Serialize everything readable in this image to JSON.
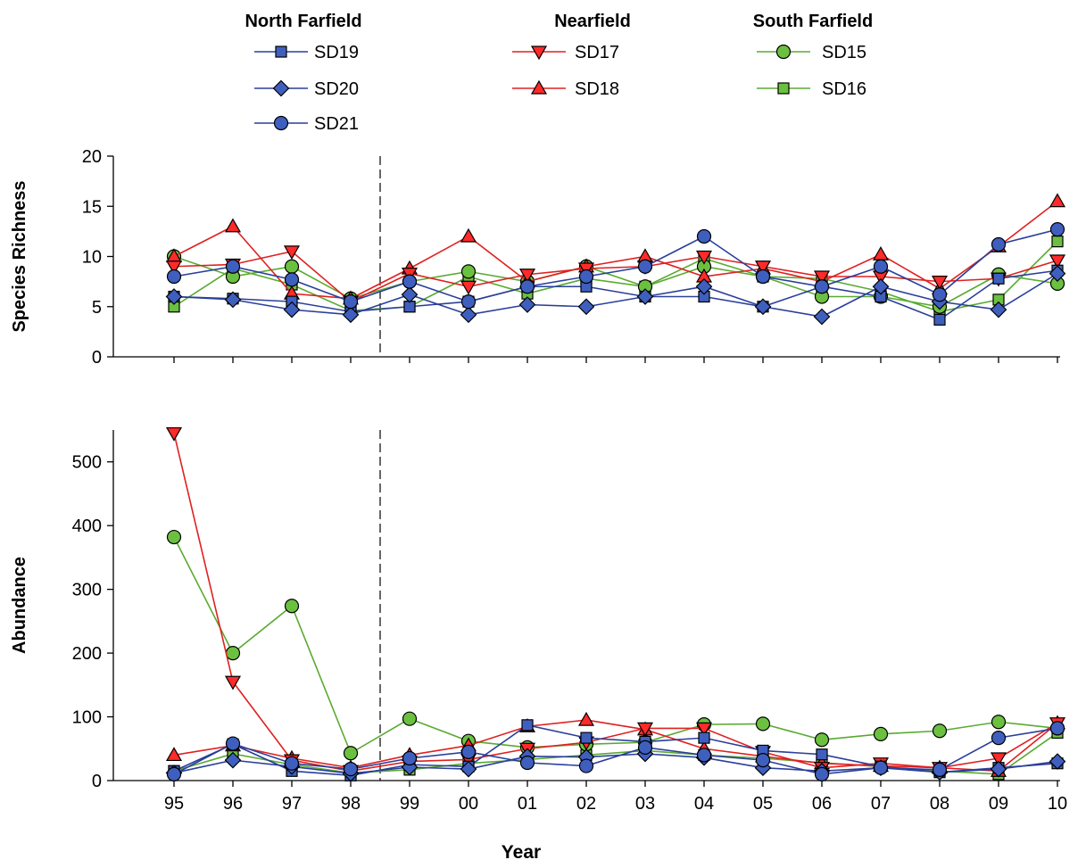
{
  "chart_data": {
    "type": "line",
    "x": [
      "95",
      "96",
      "97",
      "98",
      "99",
      "00",
      "01",
      "02",
      "03",
      "04",
      "05",
      "06",
      "07",
      "08",
      "09",
      "10"
    ],
    "xlabel": "Year",
    "divider_between": [
      "98",
      "99"
    ],
    "legend": {
      "placement": "top",
      "groups": [
        {
          "title": "North Farfield",
          "series": [
            "SD19",
            "SD20",
            "SD21"
          ]
        },
        {
          "title": "Nearfield",
          "series": [
            "SD17",
            "SD18"
          ]
        },
        {
          "title": "South Farfield",
          "series": [
            "SD15",
            "SD16"
          ]
        }
      ]
    },
    "series_styles": {
      "SD19": {
        "color": "#2a3f9a",
        "fill": "#3f5fbf",
        "marker": "square"
      },
      "SD20": {
        "color": "#2a3f9a",
        "fill": "#3f5fbf",
        "marker": "diamond"
      },
      "SD21": {
        "color": "#2a3f9a",
        "fill": "#3f5fbf",
        "marker": "circle"
      },
      "SD17": {
        "color": "#e02020",
        "fill": "#ff2a2a",
        "marker": "triangle-down"
      },
      "SD18": {
        "color": "#e02020",
        "fill": "#ff2a2a",
        "marker": "triangle-up"
      },
      "SD15": {
        "color": "#5aaa32",
        "fill": "#6cc040",
        "marker": "circle"
      },
      "SD16": {
        "color": "#5aaa32",
        "fill": "#6cc040",
        "marker": "square"
      }
    },
    "panels": [
      {
        "ylabel": "Species Richness",
        "ylim": [
          0,
          20
        ],
        "yticks": [
          0,
          5,
          10,
          15,
          20
        ],
        "series": [
          {
            "name": "SD19",
            "values": [
              6,
              5.8,
              5.5,
              4.5,
              5,
              5.5,
              7,
              7,
              6,
              6,
              5,
              7,
              6,
              3.7,
              7.8,
              8.6
            ]
          },
          {
            "name": "SD20",
            "values": [
              6,
              5.7,
              4.7,
              4.2,
              6.2,
              4.2,
              5.2,
              5,
              6,
              7,
              5,
              4,
              7,
              5.5,
              4.7,
              8.3
            ]
          },
          {
            "name": "SD21",
            "values": [
              8,
              9,
              7.7,
              5.5,
              7.5,
              5.5,
              7,
              8,
              9,
              12,
              8,
              7,
              9,
              6.2,
              11.2,
              12.7
            ]
          },
          {
            "name": "SD17",
            "values": [
              9,
              9.2,
              10.5,
              5.5,
              8.3,
              7,
              8.2,
              8.8,
              9,
              10,
              9,
              8,
              8,
              7.5,
              7.8,
              9.6
            ]
          },
          {
            "name": "SD18",
            "values": [
              10,
              13,
              6.3,
              5.8,
              8.8,
              12,
              7.5,
              9,
              10,
              8,
              8.8,
              7.5,
              10.2,
              6.8,
              11,
              15.5
            ]
          },
          {
            "name": "SD15",
            "values": [
              10,
              8,
              9,
              5.8,
              7.5,
              8.5,
              7.5,
              9,
              7,
              9,
              8,
              6,
              6,
              5,
              8.2,
              7.3
            ]
          },
          {
            "name": "SD16",
            "values": [
              5,
              8.8,
              7.2,
              4.6,
              5,
              8,
              6.3,
              7.8,
              7,
              9.8,
              8,
              7.8,
              6.5,
              4.5,
              5.7,
              11.5
            ]
          }
        ]
      },
      {
        "ylabel": "Abundance",
        "ylim": [
          0,
          550
        ],
        "yticks": [
          0,
          100,
          200,
          300,
          400,
          500
        ],
        "series": [
          {
            "name": "SD19",
            "values": [
              15,
              57,
              15,
              8,
              25,
              22,
              87,
              67,
              61,
              67,
              47,
              41,
              22,
              13,
              20,
              27
            ]
          },
          {
            "name": "SD20",
            "values": [
              12,
              32,
              22,
              11,
              21,
              18,
              38,
              37,
              42,
              36,
              20,
              15,
              20,
              13,
              18,
              30
            ]
          },
          {
            "name": "SD21",
            "values": [
              10,
              58,
              27,
              18,
              35,
              45,
              28,
              23,
              52,
              40,
              32,
              10,
              20,
              17,
              67,
              82
            ]
          },
          {
            "name": "SD17",
            "values": [
              545,
              155,
              32,
              15,
              30,
              33,
              50,
              60,
              82,
              82,
              45,
              20,
              27,
              20,
              35,
              90
            ]
          },
          {
            "name": "SD18",
            "values": [
              40,
              55,
              35,
              20,
              40,
              55,
              85,
              95,
              80,
              50,
              38,
              27,
              23,
              20,
              15,
              90
            ]
          },
          {
            "name": "SD15",
            "values": [
              382,
              200,
              274,
              43,
              97,
              62,
              52,
              57,
              60,
              88,
              89,
              64,
              73,
              78,
              92,
              82
            ]
          },
          {
            "name": "SD16",
            "values": [
              15,
              42,
              25,
              12,
              17,
              27,
              33,
              40,
              47,
              40,
              35,
              28,
              22,
              15,
              10,
              75
            ]
          }
        ]
      }
    ]
  }
}
